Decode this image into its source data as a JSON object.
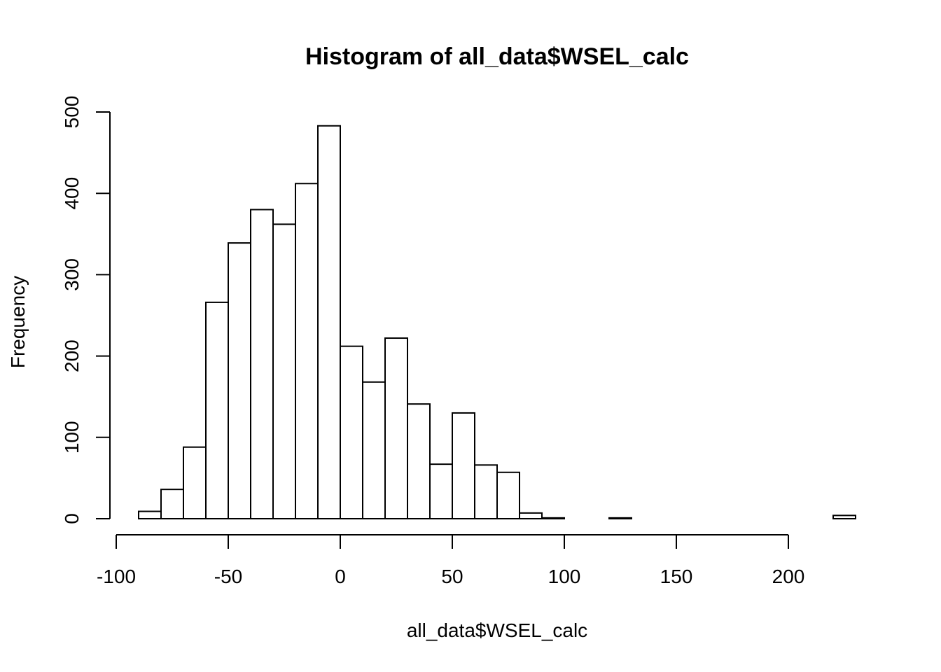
{
  "chart_data": {
    "type": "bar",
    "title": "Histogram of all_data$WSEL_calc",
    "xlabel": "all_data$WSEL_calc",
    "ylabel": "Frequency",
    "x_ticks": [
      -100,
      -50,
      0,
      50,
      100,
      150,
      200
    ],
    "y_ticks": [
      0,
      100,
      200,
      300,
      400,
      500
    ],
    "xlim": [
      -100,
      230
    ],
    "ylim": [
      0,
      500
    ],
    "grid": false,
    "bins": [
      {
        "start": -90,
        "end": -80,
        "count": 9
      },
      {
        "start": -80,
        "end": -70,
        "count": 36
      },
      {
        "start": -70,
        "end": -60,
        "count": 88
      },
      {
        "start": -60,
        "end": -50,
        "count": 266
      },
      {
        "start": -50,
        "end": -40,
        "count": 339
      },
      {
        "start": -40,
        "end": -30,
        "count": 380
      },
      {
        "start": -30,
        "end": -20,
        "count": 362
      },
      {
        "start": -20,
        "end": -10,
        "count": 412
      },
      {
        "start": -10,
        "end": 0,
        "count": 483
      },
      {
        "start": 0,
        "end": 10,
        "count": 212
      },
      {
        "start": 10,
        "end": 20,
        "count": 168
      },
      {
        "start": 20,
        "end": 30,
        "count": 222
      },
      {
        "start": 30,
        "end": 40,
        "count": 141
      },
      {
        "start": 40,
        "end": 50,
        "count": 67
      },
      {
        "start": 50,
        "end": 60,
        "count": 130
      },
      {
        "start": 60,
        "end": 70,
        "count": 66
      },
      {
        "start": 70,
        "end": 80,
        "count": 57
      },
      {
        "start": 80,
        "end": 90,
        "count": 7
      },
      {
        "start": 90,
        "end": 100,
        "count": 1
      },
      {
        "start": 100,
        "end": 110,
        "count": 0
      },
      {
        "start": 110,
        "end": 120,
        "count": 0
      },
      {
        "start": 120,
        "end": 130,
        "count": 1
      },
      {
        "start": 130,
        "end": 140,
        "count": 0
      },
      {
        "start": 140,
        "end": 150,
        "count": 0
      },
      {
        "start": 150,
        "end": 160,
        "count": 0
      },
      {
        "start": 160,
        "end": 170,
        "count": 0
      },
      {
        "start": 170,
        "end": 180,
        "count": 0
      },
      {
        "start": 180,
        "end": 190,
        "count": 0
      },
      {
        "start": 190,
        "end": 200,
        "count": 0
      },
      {
        "start": 200,
        "end": 210,
        "count": 0
      },
      {
        "start": 210,
        "end": 220,
        "count": 0
      },
      {
        "start": 220,
        "end": 230,
        "count": 4
      }
    ]
  }
}
